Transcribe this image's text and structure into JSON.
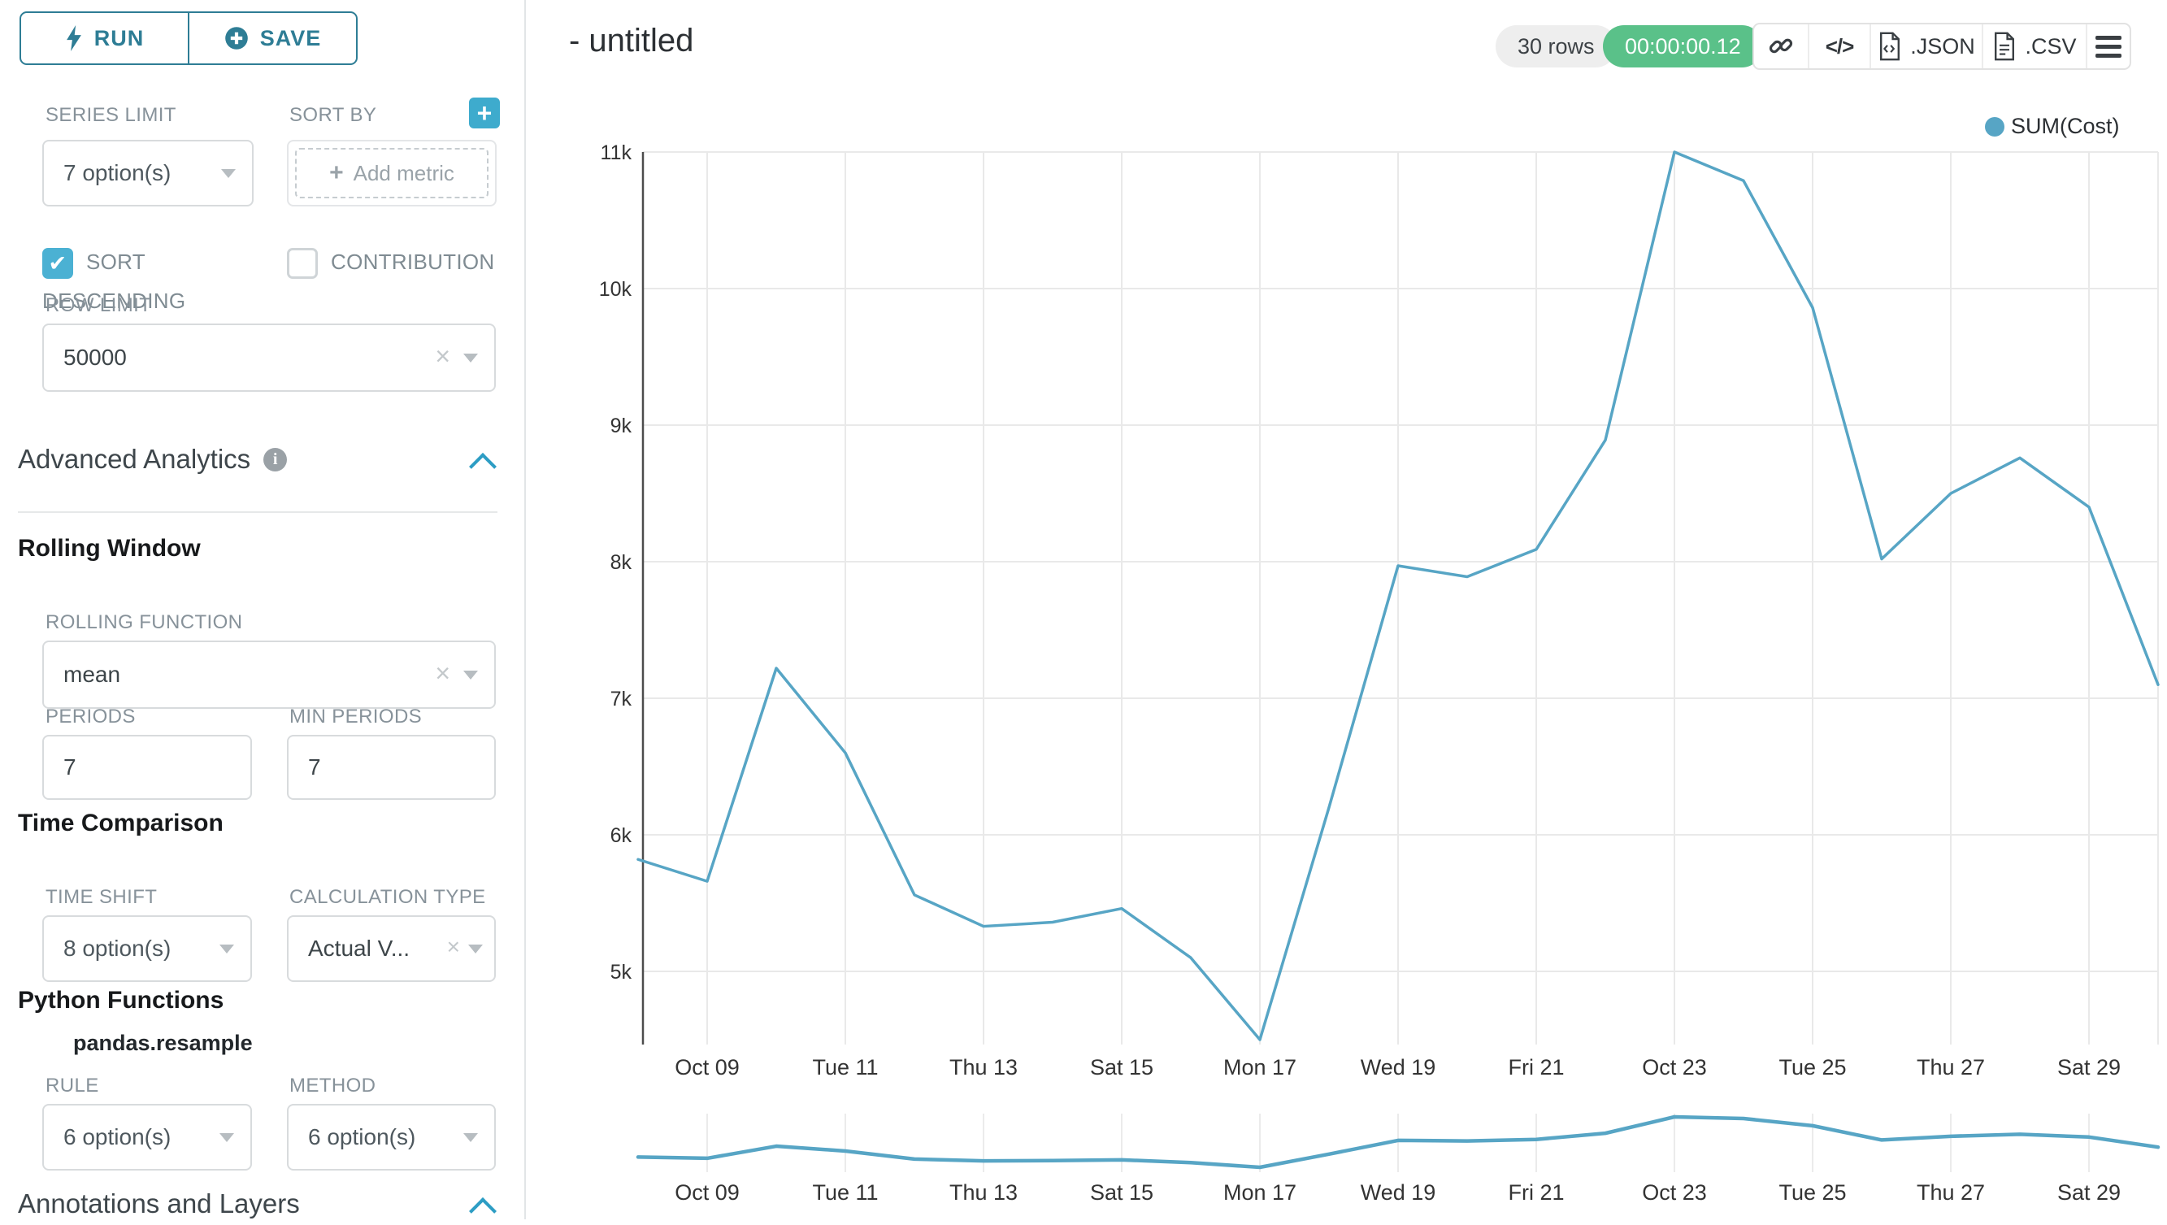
{
  "colors": {
    "accent_teal": "#2e7d95",
    "control_teal": "#4bb1d3",
    "chevron_teal": "#2d9dc4",
    "timer_green": "#5ac189",
    "line_color": "#57a5c5",
    "gridline": "#e9e9e9"
  },
  "sidebar": {
    "run_label": "RUN",
    "save_label": "SAVE",
    "series_limit": {
      "label": "SERIES LIMIT",
      "value": "7 option(s)"
    },
    "sort_by": {
      "label": "SORT BY",
      "add_metric_label": "Add metric"
    },
    "sort_descending": {
      "label": "SORT DESCENDING",
      "checked": true,
      "checkmark": "✔"
    },
    "contribution": {
      "label": "CONTRIBUTION",
      "checked": false
    },
    "row_limit": {
      "label": "ROW LIMIT",
      "value": "50000"
    },
    "advanced_analytics": {
      "title": "Advanced Analytics"
    },
    "rolling_window": {
      "title": "Rolling Window",
      "rolling_function": {
        "label": "ROLLING FUNCTION",
        "value": "mean"
      },
      "periods": {
        "label": "PERIODS",
        "value": "7"
      },
      "min_periods": {
        "label": "MIN PERIODS",
        "value": "7"
      }
    },
    "time_comparison": {
      "title": "Time Comparison",
      "time_shift": {
        "label": "TIME SHIFT",
        "value": "8 option(s)"
      },
      "calculation_type": {
        "label": "CALCULATION TYPE",
        "value": "Actual V..."
      }
    },
    "python_functions": {
      "title": "Python Functions",
      "function_name": "pandas.resample",
      "rule": {
        "label": "RULE",
        "value": "6 option(s)"
      },
      "method": {
        "label": "METHOD",
        "value": "6 option(s)"
      }
    },
    "annotations": {
      "title": "Annotations and Layers"
    }
  },
  "header": {
    "title": "- untitled",
    "rows_badge": "30 rows",
    "timer_badge": "00:00:00.12",
    "export_json_label": ".JSON",
    "export_csv_label": ".CSV"
  },
  "chart_data": {
    "type": "line",
    "legend": [
      "SUM(Cost)"
    ],
    "legend_position": "top-right",
    "grid": true,
    "x": [
      "Oct 08",
      "Oct 09",
      "Oct 10",
      "Oct 11",
      "Oct 12",
      "Oct 13",
      "Oct 14",
      "Oct 15",
      "Oct 16",
      "Oct 17",
      "Oct 18",
      "Oct 19",
      "Oct 20",
      "Oct 21",
      "Oct 22",
      "Oct 23",
      "Oct 24",
      "Oct 25",
      "Oct 26",
      "Oct 27",
      "Oct 28",
      "Oct 29",
      "Oct 30"
    ],
    "series": [
      {
        "name": "SUM(Cost)",
        "color": "#57a5c5",
        "values": [
          5820,
          5660,
          7220,
          6600,
          5560,
          5330,
          5360,
          5460,
          5100,
          4500,
          6200,
          7970,
          7890,
          8090,
          8890,
          11000,
          10790,
          9860,
          8020,
          8500,
          8760,
          8400,
          7100
        ]
      }
    ],
    "x_tick_labels": [
      "Oct 09",
      "Tue 11",
      "Thu 13",
      "Sat 15",
      "Mon 17",
      "Wed 19",
      "Fri 21",
      "Oct 23",
      "Tue 25",
      "Thu 27",
      "Sat 29"
    ],
    "y_tick_labels": [
      "11k",
      "10k",
      "9k",
      "8k",
      "7k",
      "6k",
      "5k"
    ],
    "y_tick_values": [
      11000,
      10000,
      9000,
      8000,
      7000,
      6000,
      5000
    ],
    "ylim": [
      4500,
      11000
    ],
    "has_mini_preview": true
  }
}
